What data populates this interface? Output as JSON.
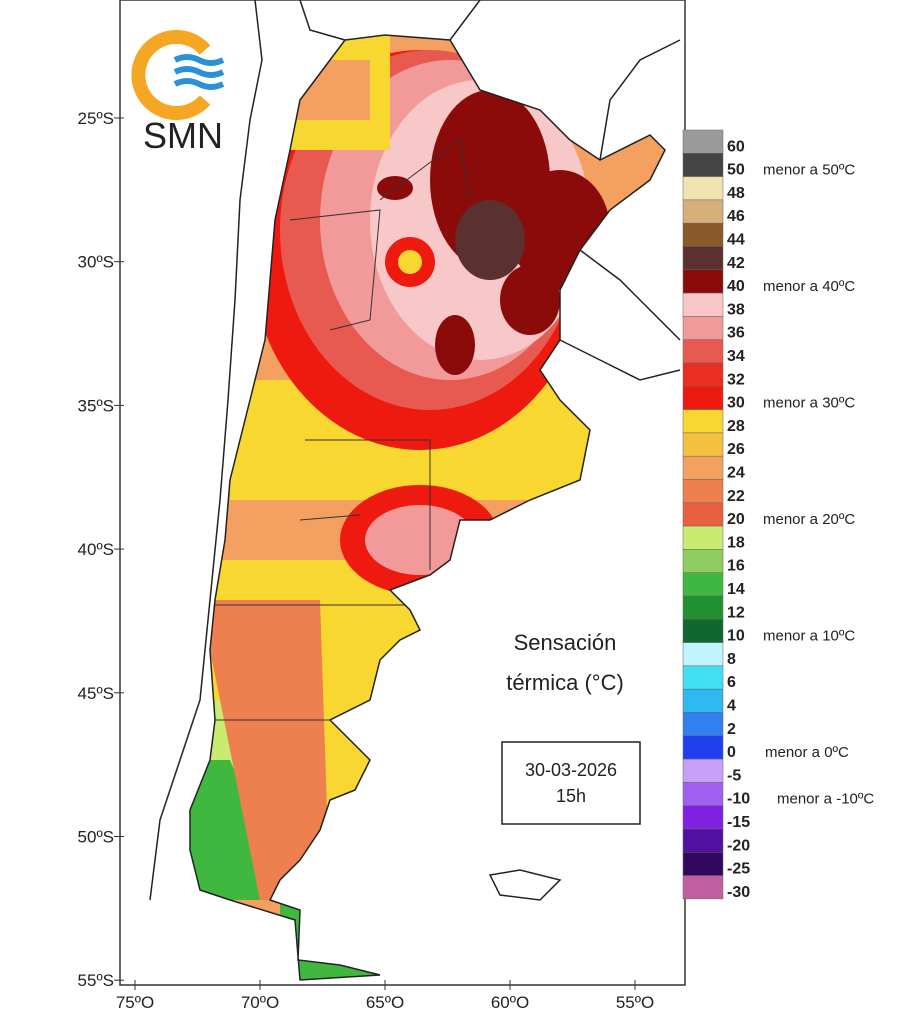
{
  "logo": {
    "text": "SMN"
  },
  "map": {
    "lat_labels": [
      "25ºS",
      "30ºS",
      "35ºS",
      "40ºS",
      "45ºS",
      "50ºS",
      "55ºS"
    ],
    "lon_labels": [
      "75ºO",
      "70ºO",
      "65ºO",
      "60ºO",
      "55ºO"
    ],
    "title_lines": [
      "Sensación",
      "térmica (°C)"
    ],
    "date": "30-03-2026",
    "time": "15h"
  },
  "legend": {
    "levels": [
      {
        "label": "60",
        "color": "#9a9a9a"
      },
      {
        "label": "50",
        "color": "#444444"
      },
      {
        "label": "48",
        "color": "#f2e2b0"
      },
      {
        "label": "46",
        "color": "#d4b078"
      },
      {
        "label": "44",
        "color": "#8b5a2b"
      },
      {
        "label": "42",
        "color": "#5a3030"
      },
      {
        "label": "40",
        "color": "#8b0a0a"
      },
      {
        "label": "38",
        "color": "#f8c8c8"
      },
      {
        "label": "36",
        "color": "#f29a9a"
      },
      {
        "label": "34",
        "color": "#e85a50"
      },
      {
        "label": "32",
        "color": "#e83020"
      },
      {
        "label": "30",
        "color": "#ee1a10"
      },
      {
        "label": "28",
        "color": "#f8d830"
      },
      {
        "label": "26",
        "color": "#f4c040"
      },
      {
        "label": "24",
        "color": "#f4a060"
      },
      {
        "label": "22",
        "color": "#ee8050"
      },
      {
        "label": "20",
        "color": "#e86040"
      },
      {
        "label": "18",
        "color": "#c8ec70"
      },
      {
        "label": "16",
        "color": "#90cc60"
      },
      {
        "label": "14",
        "color": "#40b840"
      },
      {
        "label": "12",
        "color": "#209030"
      },
      {
        "label": "10",
        "color": "#106830"
      },
      {
        "label": "8",
        "color": "#c0f4ff"
      },
      {
        "label": "6",
        "color": "#40e0f0"
      },
      {
        "label": "4",
        "color": "#30b8f0"
      },
      {
        "label": "2",
        "color": "#3080f0"
      },
      {
        "label": "0",
        "color": "#2040f0"
      },
      {
        "label": "-5",
        "color": "#c8a0f8"
      },
      {
        "label": "-10",
        "color": "#a060f0"
      },
      {
        "label": "-15",
        "color": "#8020e0"
      },
      {
        "label": "-20",
        "color": "#5010a0"
      },
      {
        "label": "-25",
        "color": "#300860"
      },
      {
        "label": "-30",
        "color": "#c060a0"
      }
    ],
    "notes": [
      "menor a 50ºC",
      "menor a 40ºC",
      "menor a 30ºC",
      "menor a 20ºC",
      "menor a 10ºC",
      "menor a 0ºC",
      "menor a -10ºC"
    ]
  }
}
